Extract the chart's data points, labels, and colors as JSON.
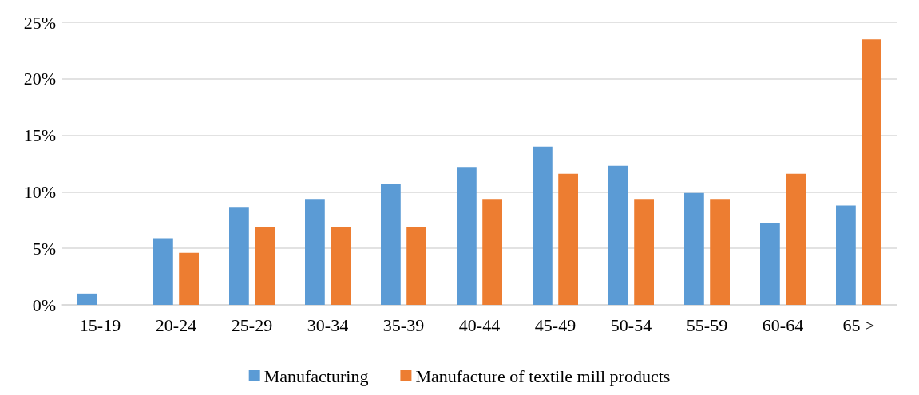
{
  "chart_data": {
    "type": "bar",
    "categories": [
      "15-19",
      "20-24",
      "25-29",
      "30-34",
      "35-39",
      "40-44",
      "45-49",
      "50-54",
      "55-59",
      "60-64",
      "65 >"
    ],
    "series": [
      {
        "name": "Manufacturing",
        "color": "#5b9bd5",
        "values": [
          1.0,
          5.9,
          8.6,
          9.3,
          10.7,
          12.2,
          14.0,
          12.3,
          9.9,
          7.2,
          8.8
        ]
      },
      {
        "name": "Manufacture of textile mill products",
        "color": "#ed7d31",
        "values": [
          0,
          4.6,
          6.9,
          6.9,
          6.9,
          9.3,
          11.6,
          9.3,
          9.3,
          11.6,
          23.5
        ]
      }
    ],
    "ylim": [
      0,
      25
    ],
    "yticks": [
      {
        "value": 0,
        "label": "0%"
      },
      {
        "value": 5,
        "label": "5%"
      },
      {
        "value": 10,
        "label": "10%"
      },
      {
        "value": 15,
        "label": "15%"
      },
      {
        "value": 20,
        "label": "20%"
      },
      {
        "value": 25,
        "label": "25%"
      }
    ],
    "grid": "y",
    "legend": "bottom"
  }
}
